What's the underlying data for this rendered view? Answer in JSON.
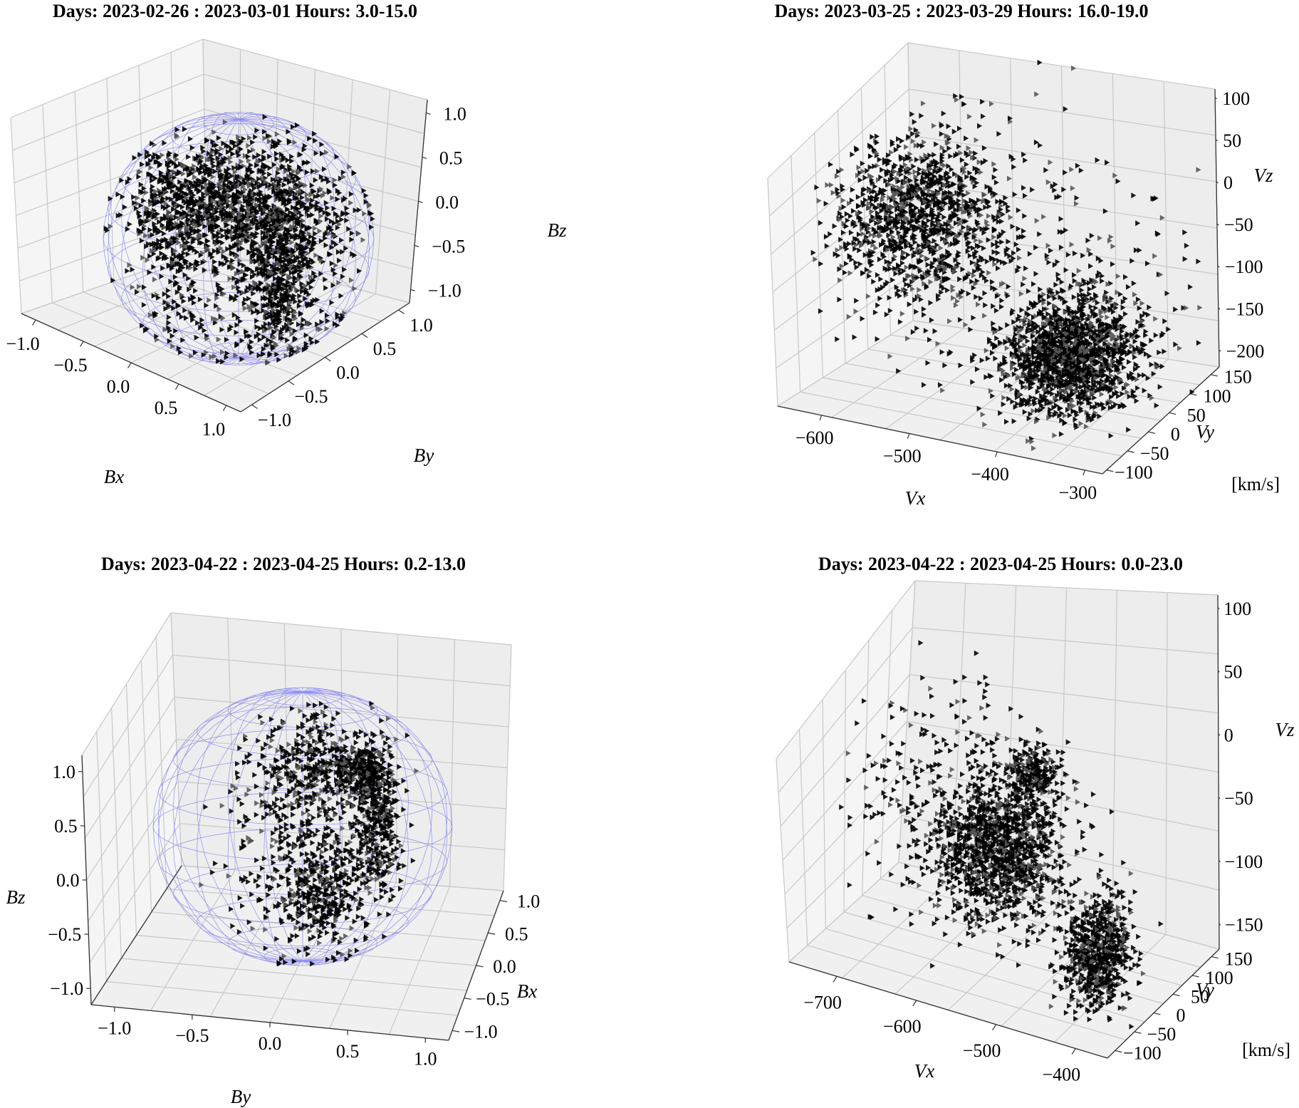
{
  "chart_data": [
    {
      "type": "scatter",
      "projection": "3d",
      "title": "Days: 2023-02-26 : 2023-03-01 Hours: 3.0-15.0",
      "xlabel": "Bx",
      "ylabel": "By",
      "zlabel": "Bz",
      "unit_label": "",
      "xlim": [
        -1.0,
        1.0
      ],
      "ylim": [
        -1.0,
        1.0
      ],
      "zlim": [
        -1.0,
        1.0
      ],
      "x_ticks": [
        "−1.0",
        "−0.5",
        "0.0",
        "0.5",
        "1.0"
      ],
      "y_ticks": [
        "−1.0",
        "−0.5",
        "0.0",
        "0.5",
        "1.0"
      ],
      "z_ticks": [
        "−1.0",
        "−0.5",
        "0.0",
        "0.5",
        "1.0"
      ],
      "unit_sphere": true,
      "marker": "triangle-right",
      "marker_color": "#000000",
      "sphere_color": "#6f6ff0",
      "clusters": [
        {
          "center": [
            -0.2,
            0.05,
            0.3
          ],
          "spread": [
            0.3,
            0.4,
            0.22
          ],
          "count": 900
        },
        {
          "center": [
            0.3,
            0.1,
            0.1
          ],
          "spread": [
            0.3,
            0.25,
            0.3
          ],
          "count": 700
        },
        {
          "center": [
            0.3,
            -0.4,
            -0.2
          ],
          "spread": [
            0.12,
            0.22,
            0.3
          ],
          "count": 450
        },
        {
          "center": [
            0.1,
            0.0,
            -0.65
          ],
          "spread": [
            0.4,
            0.4,
            0.18
          ],
          "count": 160
        },
        {
          "center": [
            -0.5,
            0.1,
            -0.2
          ],
          "spread": [
            0.15,
            0.3,
            0.4
          ],
          "count": 180
        }
      ]
    },
    {
      "type": "scatter",
      "projection": "3d",
      "title": "Days: 2023-03-25 : 2023-03-29 Hours: 16.0-19.0",
      "xlabel": "Vx",
      "ylabel": "Vy",
      "zlabel": "Vz",
      "unit_label": "[km/s]",
      "xlim": [
        -650,
        -280
      ],
      "ylim": [
        -110,
        170
      ],
      "zlim": [
        -220,
        110
      ],
      "x_ticks": [
        "−600",
        "−500",
        "−400",
        "−300"
      ],
      "y_ticks": [
        "−100",
        "−50",
        "0",
        "50",
        "100",
        "150"
      ],
      "z_ticks": [
        "−200",
        "−150",
        "−100",
        "−50",
        "0",
        "50",
        "100"
      ],
      "unit_sphere": false,
      "marker": "triangle-right",
      "marker_color": "#000000",
      "clusters": [
        {
          "center": [
            -560,
            40,
            -10
          ],
          "spread": [
            45,
            45,
            45
          ],
          "count": 1200
        },
        {
          "center": [
            -380,
            30,
            -150
          ],
          "spread": [
            35,
            40,
            35
          ],
          "count": 1500
        },
        {
          "center": [
            -450,
            40,
            -60
          ],
          "spread": [
            90,
            70,
            90
          ],
          "count": 320
        }
      ]
    },
    {
      "type": "scatter",
      "projection": "3d",
      "title": "Days: 2023-04-22 : 2023-04-25 Hours: 0.2-13.0",
      "xlabel": "Bx",
      "ylabel": "By",
      "zlabel": "Bz",
      "unit_label": "",
      "xlim": [
        -1.0,
        1.0
      ],
      "ylim": [
        -1.0,
        1.0
      ],
      "zlim": [
        -1.0,
        1.0
      ],
      "x_ticks": [
        "−1.0",
        "−0.5",
        "0.0",
        "0.5",
        "1.0"
      ],
      "y_ticks": [
        "−1.0",
        "−0.5",
        "0.0",
        "0.5",
        "1.0"
      ],
      "z_ticks": [
        "−1.0",
        "−0.5",
        "0.0",
        "0.5",
        "1.0"
      ],
      "unit_sphere": true,
      "marker": "triangle-right",
      "marker_color": "#000000",
      "sphere_color": "#6f6ff0",
      "clusters": [
        {
          "center": [
            0.5,
            0.1,
            0.05
          ],
          "spread": [
            0.08,
            0.1,
            0.3
          ],
          "count": 420
        },
        {
          "center": [
            0.4,
            0.3,
            0.35
          ],
          "spread": [
            0.08,
            0.1,
            0.08
          ],
          "count": 200
        },
        {
          "center": [
            0.0,
            -0.55,
            0.2
          ],
          "spread": [
            0.25,
            0.12,
            0.5
          ],
          "count": 520
        },
        {
          "center": [
            0.1,
            -0.8,
            -0.3
          ],
          "spread": [
            0.15,
            0.1,
            0.2
          ],
          "count": 300
        },
        {
          "center": [
            0.1,
            -0.7,
            0.6
          ],
          "spread": [
            0.2,
            0.15,
            0.15
          ],
          "count": 220
        }
      ]
    },
    {
      "type": "scatter",
      "projection": "3d",
      "title": "Days: 2023-04-22 : 2023-04-25 Hours: 0.0-23.0",
      "xlabel": "Vx",
      "ylabel": "Vy",
      "zlabel": "Vz",
      "unit_label": "[km/s]",
      "xlim": [
        -760,
        -360
      ],
      "ylim": [
        -120,
        170
      ],
      "zlim": [
        -170,
        110
      ],
      "x_ticks": [
        "−700",
        "−600",
        "−500",
        "−400"
      ],
      "y_ticks": [
        "−100",
        "−50",
        "0",
        "50",
        "100",
        "150"
      ],
      "z_ticks": [
        "−150",
        "−100",
        "−50",
        "0",
        "50",
        "100"
      ],
      "unit_sphere": false,
      "marker": "triangle-right",
      "marker_color": "#000000",
      "clusters": [
        {
          "center": [
            -570,
            40,
            -60
          ],
          "spread": [
            38,
            35,
            35
          ],
          "count": 1300
        },
        {
          "center": [
            -420,
            -20,
            -110
          ],
          "spread": [
            18,
            25,
            28
          ],
          "count": 700
        },
        {
          "center": [
            -540,
            60,
            10
          ],
          "spread": [
            15,
            15,
            12
          ],
          "count": 220
        },
        {
          "center": [
            -650,
            50,
            -30
          ],
          "spread": [
            55,
            40,
            60
          ],
          "count": 260
        }
      ]
    }
  ]
}
